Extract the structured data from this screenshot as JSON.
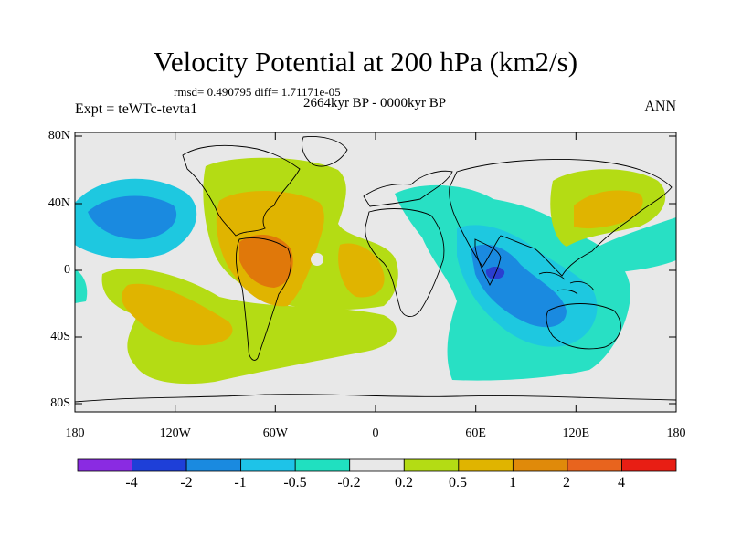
{
  "title": "Velocity Potential at 200 hPa (km2/s)",
  "stats": "rmsd= 0.490795 diff= 1.71171e-05",
  "period": "2664kyr BP - 0000kyr BP",
  "experiment": "Expt = teWTc-tevta1",
  "season": "ANN",
  "lat_labels": [
    "80N",
    "40N",
    "0",
    "40S",
    "80S"
  ],
  "lon_labels": [
    "180",
    "120W",
    "60W",
    "0",
    "60E",
    "120E",
    "180"
  ],
  "colorbar": {
    "labels": [
      "-4",
      "-2",
      "-1",
      "-0.5",
      "-0.2",
      "0.2",
      "0.5",
      "1",
      "2",
      "4"
    ],
    "colors": [
      "#8a2be2",
      "#1e3fd8",
      "#1a8ae0",
      "#1ec3e8",
      "#20e0c0",
      "#e8e8e8",
      "#b4dc14",
      "#e0b400",
      "#e08a0a",
      "#e8641e",
      "#e81e14"
    ]
  },
  "map": {
    "background": "#e8e8e8",
    "fill_colors": {
      "neg_strong": "#2a3fd0",
      "neg_mid": "#1a8ae0",
      "neg_light": "#1ec8e0",
      "neg_weak": "#28e0c4",
      "pos_weak": "#b4dc14",
      "pos_mid": "#e0b400",
      "pos_strong": "#e0780a"
    }
  }
}
